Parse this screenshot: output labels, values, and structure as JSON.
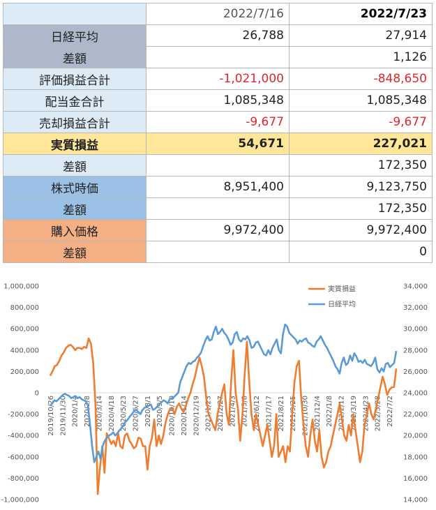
{
  "table": {
    "header": [
      "",
      "2022/7/16",
      "2022/7/23"
    ],
    "rows": [
      {
        "label": "日経平均",
        "v1": "26,788",
        "v2": "27,914"
      },
      {
        "label": "差額",
        "v1": "",
        "v2": "1,126"
      },
      {
        "label": "評価損益合計",
        "v1": "-1,021,000",
        "v2": "-848,650"
      },
      {
        "label": "配当金合計",
        "v1": "1,085,348",
        "v2": "1,085,348"
      },
      {
        "label": "売却損益合計",
        "v1": "-9,677",
        "v2": "-9,677"
      },
      {
        "label": "実質損益",
        "v1": "54,671",
        "v2": "227,021"
      },
      {
        "label": "差額",
        "v1": "",
        "v2": "172,350"
      },
      {
        "label": "株式時価",
        "v1": "8,951,400",
        "v2": "9,123,750"
      },
      {
        "label": "差額",
        "v1": "",
        "v2": "172,350"
      },
      {
        "label": "購入価格",
        "v1": "9,972,400",
        "v2": "9,972,400"
      },
      {
        "label": "差額",
        "v1": "",
        "v2": "0"
      }
    ]
  },
  "colors": {
    "orange_series": "#ed7d31",
    "blue_series": "#5b9bd5",
    "negative_text": "#e0262d"
  },
  "chart_data": {
    "type": "line",
    "legend": [
      "実質損益",
      "日経平均"
    ],
    "legend_position": "top-right",
    "grid": false,
    "y_left": {
      "range": [
        -1000000,
        1000000
      ],
      "ticks": [
        "1,000,000",
        "800,000",
        "600,000",
        "400,000",
        "200,000",
        "0",
        "-200,000",
        "-400,000",
        "-600,000",
        "-800,000",
        "-1,000,000"
      ]
    },
    "y_right": {
      "range": [
        14000,
        34000
      ],
      "ticks": [
        "34,000",
        "32,000",
        "30,000",
        "28,000",
        "26,000",
        "24,000",
        "22,000",
        "20,000",
        "18,000",
        "16,000",
        "14,000"
      ]
    },
    "x_ticks": [
      "2019/10/26",
      "2019/11/30",
      "2020/1/4",
      "2020/2/8",
      "2020/3/14",
      "2020/4/18",
      "2020/5/23",
      "2020/6/27",
      "2020/8/1",
      "2020/9/5",
      "2020/10/10",
      "2020/11/14",
      "2020/12/19",
      "2021/1/23",
      "2021/2/27",
      "2021/4/3",
      "2021/5/8",
      "2021/6/12",
      "2021/7/17",
      "2021/8/21",
      "2021/9/25",
      "2021/10/30",
      "2021/12/4",
      "2022/1/8",
      "2022/2/12",
      "2022/3/19",
      "2022/4/23",
      "2022/5/28",
      "2022/7/2"
    ],
    "series": [
      {
        "name": "実質損益",
        "axis": "left",
        "values": [
          160000,
          200000,
          250000,
          260000,
          300000,
          350000,
          380000,
          420000,
          440000,
          450000,
          430000,
          400000,
          420000,
          420000,
          410000,
          430000,
          420000,
          510000,
          460000,
          280000,
          -100000,
          -950000,
          -700000,
          -500000,
          -750000,
          -380000,
          -430000,
          -480000,
          -450000,
          -500000,
          -380000,
          -500000,
          -520000,
          -400000,
          -380000,
          -450000,
          -480000,
          -520000,
          -500000,
          -420000,
          -430000,
          -500000,
          -500000,
          -720000,
          -500000,
          -420000,
          -250000,
          -500000,
          -400000,
          -480000,
          -400000,
          -280000,
          -200000,
          -150000,
          -150000,
          -200000,
          -130000,
          -100000,
          -150000,
          -180000,
          -120000,
          -50000,
          0,
          80000,
          150000,
          250000,
          330000,
          250000,
          150000,
          -50000,
          -200000,
          -250000,
          -300000,
          -350000,
          -200000,
          -100000,
          0,
          80000,
          -200000,
          -300000,
          100000,
          400000,
          0,
          -150000,
          -450000,
          -200000,
          180000,
          480000,
          100000,
          -200000,
          -350000,
          -200000,
          -300000,
          -400000,
          -500000,
          -400000,
          -300000,
          -450000,
          -600000,
          -500000,
          -200000,
          -600000,
          -550000,
          -500000,
          -650000,
          -500000,
          -550000,
          -200000,
          100000,
          250000,
          300000,
          -50000,
          -300000,
          -500000,
          -600000,
          -400000,
          -250000,
          -450000,
          -550000,
          -350000,
          -600000,
          -700000,
          -650000,
          -550000,
          -500000,
          -400000,
          -300000,
          -200000,
          -100000,
          -250000,
          -400000,
          -450000,
          -300000,
          -400000,
          -200000,
          -350000,
          -500000,
          -650000,
          -550000,
          -300000,
          -200000,
          -100000,
          -200000,
          -250000,
          -150000,
          -50000,
          50000,
          150000,
          80000,
          -20000,
          30000,
          50000,
          54671,
          227021
        ]
      },
      {
        "name": "日経平均",
        "axis": "right",
        "values": [
          22800,
          23000,
          23300,
          23200,
          23400,
          23600,
          23800,
          23900,
          23800,
          23700,
          23500,
          23600,
          23700,
          23500,
          23600,
          23400,
          23300,
          23200,
          22800,
          21000,
          19000,
          17500,
          18000,
          18500,
          17800,
          19000,
          19500,
          19800,
          20000,
          20100,
          20300,
          20000,
          20200,
          20500,
          20700,
          21000,
          21300,
          21500,
          21800,
          22000,
          22300,
          22400,
          22200,
          22000,
          22400,
          22600,
          22700,
          22800,
          22900,
          22400,
          22500,
          22700,
          22900,
          23100,
          23300,
          23200,
          23000,
          23400,
          23500,
          23600,
          23800,
          24000,
          25000,
          25500,
          26000,
          26500,
          26800,
          26700,
          26900,
          27000,
          27300,
          27500,
          27800,
          28400,
          28900,
          29300,
          28900,
          29000,
          29700,
          30200,
          29500,
          29700,
          30000,
          29600,
          29400,
          29000,
          28500,
          28700,
          29500,
          29700,
          29000,
          28800,
          29100,
          29000,
          29300,
          28900,
          28200,
          28300,
          28700,
          28800,
          28400,
          28000,
          27600,
          27500,
          28000,
          27600,
          28200,
          28600,
          29000,
          28000,
          27700,
          29500,
          30400,
          30200,
          29600,
          29400,
          29200,
          29000,
          28600,
          28900,
          28800,
          29000,
          29100,
          28700,
          28600,
          28400,
          28300,
          28800,
          29000,
          29300,
          28900,
          28500,
          28200,
          27800,
          27400,
          27000,
          26500,
          26200,
          25800,
          26800,
          27300,
          26600,
          26800,
          27500,
          27000,
          27700,
          27400,
          26900,
          27000,
          26800,
          27100,
          26700,
          26600,
          26500,
          26800,
          27300,
          26200,
          25900,
          26300,
          26000,
          26700,
          26800,
          26400,
          26600,
          26788,
          27914
        ]
      }
    ]
  }
}
